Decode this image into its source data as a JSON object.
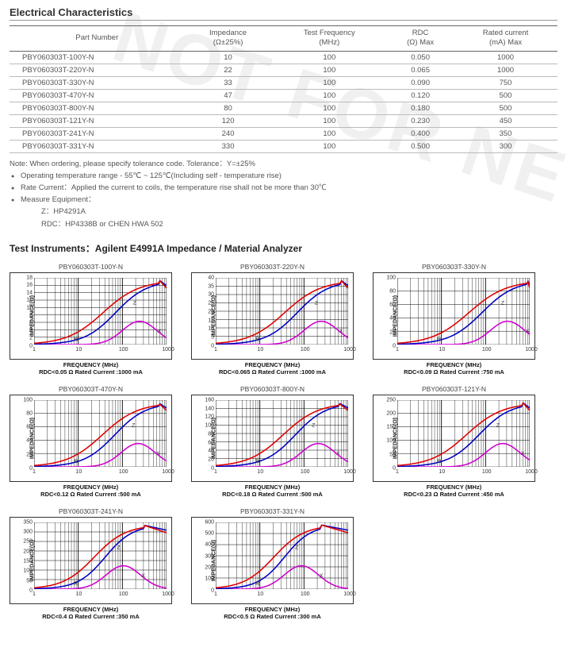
{
  "watermark_text": "NOT FOR NEW DESIGN",
  "section_title": "Electrical Characteristics",
  "table": {
    "columns": [
      {
        "line1": "Part Number",
        "line2": ""
      },
      {
        "line1": "Impedance",
        "line2": "(Ω±25%)"
      },
      {
        "line1": "Test Frequency",
        "line2": "(MHz)"
      },
      {
        "line1": "RDC",
        "line2": "(Ω) Max"
      },
      {
        "line1": "Rated current",
        "line2": "(mA) Max"
      }
    ],
    "rows": [
      [
        "PBY060303T-100Y-N",
        "10",
        "100",
        "0.050",
        "1000"
      ],
      [
        "PBY060303T-220Y-N",
        "22",
        "100",
        "0.065",
        "1000"
      ],
      [
        "PBY060303T-330Y-N",
        "33",
        "100",
        "0.090",
        "750"
      ],
      [
        "PBY060303T-470Y-N",
        "47",
        "100",
        "0.120",
        "500"
      ],
      [
        "PBY060303T-800Y-N",
        "80",
        "100",
        "0.180",
        "500"
      ],
      [
        "PBY060303T-121Y-N",
        "120",
        "100",
        "0.230",
        "450"
      ],
      [
        "PBY060303T-241Y-N",
        "240",
        "100",
        "0.400",
        "350"
      ],
      [
        "PBY060303T-331Y-N",
        "330",
        "100",
        "0.500",
        "300"
      ]
    ]
  },
  "notes": {
    "header": "Note: When ordering, please specify tolerance code. Tolerance：Y=±25%",
    "items": [
      "Operating temperature range - 55℃ ~ 125℃(Including self - temperature rise)",
      "Rate Current：Applied the current to coils, the temperature rise shall not be more than 30℃",
      "Measure Equipment："
    ],
    "equipment": [
      "Z：HP4291A",
      "RDC：HP4338B or CHEN HWA 502"
    ]
  },
  "instruments_title": "Test Instruments：Agilent E4991A Impedance / Material Analyzer",
  "chart_common": {
    "ylabel": "IMPEDANCE(Ω)",
    "xlabel": "FREQUENCY (MHz)",
    "x_ticks": [
      1,
      10,
      100,
      1000
    ],
    "x_range": [
      1,
      1000
    ],
    "grid_color": "#000000",
    "background": "#ffffff",
    "line_colors": {
      "Z": "#e00000",
      "R": "#0000c0",
      "X": "#d000d0"
    },
    "line_width": 1.6,
    "label_fontsize": 7,
    "title_fontsize": 8.5,
    "curve_labels": [
      "Z",
      "R",
      "X"
    ]
  },
  "charts": [
    {
      "title": "PBY060303T-100Y-N",
      "caption_line1": "FREQUENCY (MHz)",
      "caption_line2": "RDC<0.05 Ω Rated Current :1000 mA",
      "ymax": 18,
      "ytick_step": 2,
      "peak_f": 700
    },
    {
      "title": "PBY060303T-220Y-N",
      "caption_line1": "FREQUENCY (MHz)",
      "caption_line2": "RDC<0.065 Ω Rated Current :1000 mA",
      "ymax": 40,
      "ytick_step": 5,
      "peak_f": 700
    },
    {
      "title": "PBY060303T-330Y-N",
      "caption_line1": "FREQUENCY (MHz)",
      "caption_line2": "RDC<0.09 Ω Rated Current :750 mA",
      "ymax": 100,
      "ytick_step": 20,
      "peak_f": 900
    },
    {
      "title": "PBY060303T-470Y-N",
      "caption_line1": "FREQUENCY (MHz)",
      "caption_line2": "RDC<0.12 Ω Rated Current :500 mA",
      "ymax": 100,
      "ytick_step": 20,
      "peak_f": 650
    },
    {
      "title": "PBY060303T-800Y-N",
      "caption_line1": "FREQUENCY (MHz)",
      "caption_line2": "RDC<0.18 Ω Rated Current :500 mA",
      "ymax": 160,
      "ytick_step": 20,
      "peak_f": 600
    },
    {
      "title": "PBY060303T-121Y-N",
      "caption_line1": "FREQUENCY (MHz)",
      "caption_line2": "RDC<0.23 Ω Rated Current :450 mA",
      "ymax": 250,
      "ytick_step": 50,
      "peak_f": 700
    },
    {
      "title": "PBY060303T-241Y-N",
      "caption_line1": "FREQUENCY (MHz)",
      "caption_line2": "RDC<0.4 Ω Rated Current :350 mA",
      "ymax": 350,
      "ytick_step": 50,
      "peak_f": 300
    },
    {
      "title": "PBY060303T-331Y-N",
      "caption_line1": "FREQUENCY (MHz)",
      "caption_line2": "RDC<0.5 Ω Rated Current :300 mA",
      "ymax": 600,
      "ytick_step": 100,
      "peak_f": 250
    }
  ]
}
